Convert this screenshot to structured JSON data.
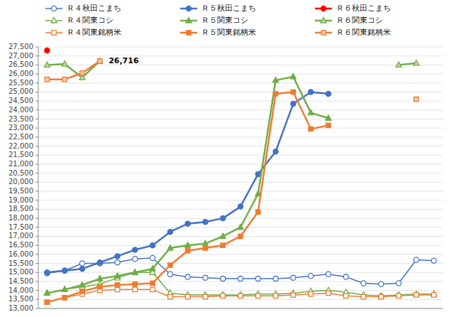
{
  "chart_data": {
    "type": "line",
    "categories": [
      null,
      null,
      null,
      null,
      null,
      null,
      null,
      null,
      null,
      null,
      null,
      null,
      null,
      null,
      null,
      null,
      null,
      null,
      null,
      null,
      null,
      null,
      null
    ],
    "series": [
      {
        "name": "Ｒ４秋田こまち",
        "color": "#4472C4",
        "marker": "circle-open",
        "values": [
          14950,
          15100,
          15500,
          15500,
          15550,
          15750,
          15800,
          14900,
          14750,
          14700,
          14650,
          14650,
          14650,
          14650,
          14700,
          14800,
          14900,
          14750,
          14400,
          14350,
          14400,
          15700,
          15650
        ]
      },
      {
        "name": "Ｒ５秋田こまち",
        "color": "#4472C4",
        "marker": "circle",
        "values": [
          15000,
          15100,
          15200,
          15550,
          15900,
          16250,
          16500,
          17250,
          17700,
          17800,
          18000,
          18650,
          20450,
          21700,
          24350,
          25000,
          24900,
          null,
          null,
          null,
          null,
          null,
          null
        ]
      },
      {
        "name": "Ｒ６秋田こまち",
        "color": "#FF0000",
        "marker": "circle",
        "values": [
          27300,
          null,
          null,
          null,
          null,
          null,
          null,
          null,
          null,
          null,
          null,
          null,
          null,
          null,
          null,
          null,
          null,
          null,
          null,
          null,
          null,
          null,
          null
        ]
      },
      {
        "name": "Ｒ４関東コシ",
        "color": "#70AD47",
        "marker": "triangle-open",
        "values": [
          13850,
          14050,
          14200,
          14350,
          14700,
          15000,
          15000,
          13850,
          13750,
          13750,
          13750,
          13750,
          13800,
          13800,
          13850,
          13950,
          14000,
          13900,
          13750,
          13700,
          13750,
          13800,
          13800
        ]
      },
      {
        "name": "Ｒ５関東コシ",
        "color": "#70AD47",
        "marker": "triangle",
        "values": [
          13850,
          14050,
          14300,
          14650,
          14800,
          15000,
          15200,
          16350,
          16500,
          16600,
          17000,
          17500,
          19350,
          25650,
          25850,
          23850,
          23550,
          null,
          null,
          null,
          null,
          null,
          null
        ]
      },
      {
        "name": "Ｒ６関東コシ",
        "color": "#70AD47",
        "marker": "triangle-light",
        "values": [
          26500,
          26550,
          25800,
          26716,
          null,
          null,
          null,
          null,
          null,
          null,
          null,
          null,
          null,
          null,
          null,
          null,
          null,
          null,
          null,
          null,
          26500,
          26600,
          null
        ]
      },
      {
        "name": "Ｒ４関東銘柄米",
        "color": "#ED7D31",
        "marker": "square-open",
        "values": [
          13350,
          13600,
          13800,
          14000,
          14050,
          14050,
          14050,
          13650,
          13650,
          13650,
          13700,
          13700,
          13700,
          13700,
          13750,
          13800,
          13850,
          13700,
          13650,
          13650,
          13700,
          13750,
          13750
        ]
      },
      {
        "name": "Ｒ５関東銘柄米",
        "color": "#ED7D31",
        "marker": "square",
        "values": [
          13350,
          13600,
          13950,
          14200,
          14300,
          14350,
          14400,
          15400,
          16200,
          16350,
          16500,
          17000,
          18350,
          24900,
          25000,
          22950,
          23150,
          null,
          null,
          null,
          null,
          null,
          null
        ]
      },
      {
        "name": "Ｒ６関東銘柄米",
        "color": "#ED7D31",
        "marker": "square-light",
        "values": [
          25700,
          25700,
          26050,
          26716,
          null,
          null,
          null,
          null,
          null,
          null,
          null,
          null,
          null,
          null,
          null,
          null,
          null,
          null,
          null,
          null,
          null,
          24600,
          null
        ]
      }
    ],
    "annotations": [
      {
        "text": "26,716",
        "x": 3,
        "y": 26716
      }
    ],
    "ylim": [
      13000,
      27500
    ],
    "yticks": [
      {
        "value": 13000,
        "label": "13,000"
      },
      {
        "value": 13500,
        "label": "13,500"
      },
      {
        "value": 14000,
        "label": "14,000"
      },
      {
        "value": 14500,
        "label": "14,500"
      },
      {
        "value": 15000,
        "label": "15,000"
      },
      {
        "value": 15500,
        "label": "15,500"
      },
      {
        "value": 16000,
        "label": "16,000"
      },
      {
        "value": 16500,
        "label": "16,500"
      },
      {
        "value": 17000,
        "label": "17,000"
      },
      {
        "value": 17500,
        "label": "17,500"
      },
      {
        "value": 18000,
        "label": "18,000"
      },
      {
        "value": 18500,
        "label": "18,500"
      },
      {
        "value": 19000,
        "label": "19,000"
      },
      {
        "value": 19500,
        "label": "19,500"
      },
      {
        "value": 20000,
        "label": "20,000"
      },
      {
        "value": 20500,
        "label": "20,500"
      },
      {
        "value": 21000,
        "label": "21,000"
      },
      {
        "value": 21500,
        "label": "21,500"
      },
      {
        "value": 22000,
        "label": "22,000"
      },
      {
        "value": 22500,
        "label": "22,500"
      },
      {
        "value": 23000,
        "label": "23,000"
      },
      {
        "value": 23500,
        "label": "23,500"
      },
      {
        "value": 24000,
        "label": "24,000"
      },
      {
        "value": 24500,
        "label": "24,500"
      },
      {
        "value": 25000,
        "label": "25,000"
      },
      {
        "value": 25500,
        "label": "25,500"
      },
      {
        "value": 26000,
        "label": "26,000"
      },
      {
        "value": 26500,
        "label": "26,500"
      },
      {
        "value": 27000,
        "label": "27,000"
      },
      {
        "value": 27500,
        "label": "27,500"
      }
    ],
    "grid": true,
    "legend": "top",
    "tick_labels": "y"
  }
}
